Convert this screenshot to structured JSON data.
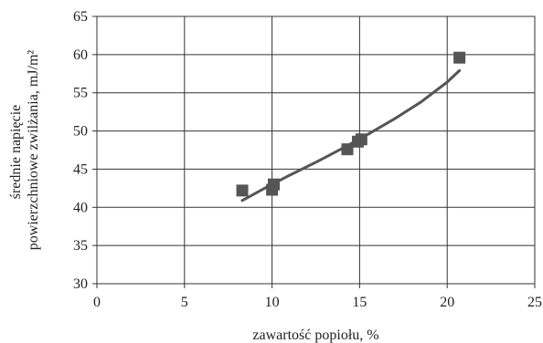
{
  "chart_data": {
    "type": "scatter",
    "title": "",
    "xlabel": "zawartość popiołu, %",
    "ylabel_lines": [
      "średnie napięcie",
      "powierzchniowe zwilżania, mJ/m²"
    ],
    "xlim": [
      0,
      25
    ],
    "ylim": [
      30,
      65
    ],
    "x_ticks": [
      0,
      5,
      10,
      15,
      20,
      25
    ],
    "y_ticks": [
      30,
      35,
      40,
      45,
      50,
      55,
      60,
      65
    ],
    "x_tick_labels": [
      "0",
      "5",
      "10",
      "15",
      "20",
      "25"
    ],
    "y_tick_labels": [
      "30",
      "35",
      "40",
      "45",
      "50",
      "55",
      "60",
      "65"
    ],
    "grid": true,
    "legend": "none",
    "marker_color": "#555555",
    "line_color": "#555555",
    "series": [
      {
        "x": [
          8.3,
          10.0,
          10.1,
          14.3,
          14.9,
          15.1,
          20.7
        ],
        "y": [
          42.2,
          42.3,
          43.0,
          47.6,
          48.6,
          48.9,
          59.6
        ]
      }
    ],
    "trendline": {
      "x": [
        8.3,
        9.5,
        11.0,
        12.5,
        14.0,
        15.5,
        17.0,
        18.5,
        20.0,
        20.7
      ],
      "y": [
        40.9,
        42.4,
        44.2,
        45.9,
        47.7,
        49.6,
        51.6,
        53.8,
        56.4,
        57.9
      ]
    }
  }
}
